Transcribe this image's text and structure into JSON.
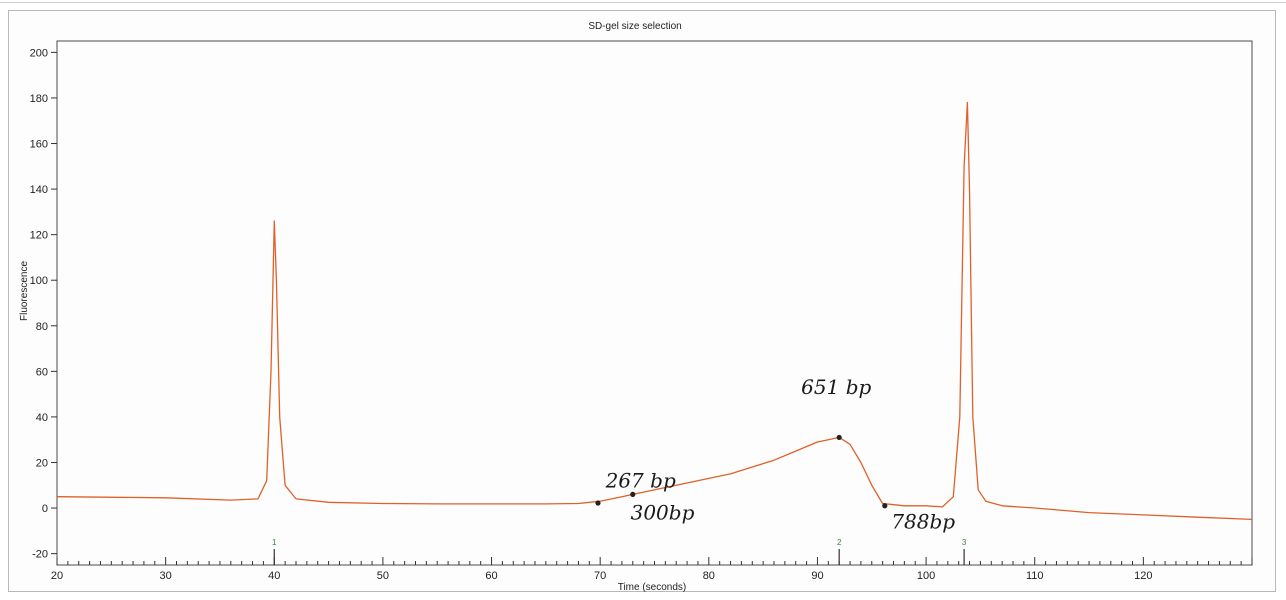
{
  "chart_data": {
    "type": "line",
    "title": "SD-gel size selection",
    "xlabel": "Time (seconds)",
    "ylabel": "Fluorescence",
    "xlim": [
      20,
      130
    ],
    "ylim": [
      -25,
      205
    ],
    "x_ticks": [
      20,
      30,
      40,
      50,
      60,
      70,
      80,
      90,
      100,
      110,
      120
    ],
    "y_ticks": [
      -20,
      0,
      20,
      40,
      60,
      80,
      100,
      120,
      140,
      160,
      180,
      200
    ],
    "grid": false,
    "line_color": "#e0602a",
    "series": [
      {
        "x": [
          20,
          30,
          36,
          38.5,
          39.3,
          39.7,
          40.0,
          40.2,
          40.5,
          41.0,
          42,
          45,
          50,
          55,
          60,
          65,
          68,
          70,
          72,
          74,
          76,
          78,
          80,
          82,
          84,
          86,
          88,
          89,
          90,
          91,
          92,
          93,
          94,
          95,
          96,
          98,
          100,
          101.5,
          102.5,
          103.1,
          103.5,
          103.8,
          104.0,
          104.3,
          104.8,
          105.5,
          107,
          110,
          115,
          120,
          125,
          130
        ],
        "y": [
          5,
          4.5,
          3.5,
          4,
          12,
          60,
          126,
          100,
          40,
          10,
          4,
          2.5,
          2,
          1.8,
          1.8,
          1.8,
          2,
          3,
          5,
          7,
          9,
          11,
          13,
          15,
          18,
          21,
          25,
          27,
          29,
          30,
          31,
          28,
          20,
          10,
          2,
          1,
          1,
          0.5,
          5,
          40,
          150,
          178,
          140,
          40,
          8,
          3,
          1,
          0,
          -2,
          -3,
          -4,
          -5
        ]
      }
    ],
    "markers": [
      {
        "name": "marker-1",
        "x": 40,
        "label": "1"
      },
      {
        "name": "marker-2",
        "x": 92,
        "label": "2"
      },
      {
        "name": "marker-3",
        "x": 103.5,
        "label": "3"
      }
    ],
    "annotations": [
      {
        "text": "267 bp",
        "x": 69.8,
        "y": 2.2,
        "tx": 70.5,
        "ty": 9,
        "dot": true
      },
      {
        "text": "300bp",
        "x": 73.0,
        "y": 6,
        "tx": 72.8,
        "ty": -5,
        "dot": true
      },
      {
        "text": "651 bp",
        "x": 92.0,
        "y": 31,
        "tx": 88.5,
        "ty": 50,
        "dot": true
      },
      {
        "text": "788bp",
        "x": 96.2,
        "y": 1,
        "tx": 96.8,
        "ty": -9,
        "dot": true
      }
    ]
  }
}
